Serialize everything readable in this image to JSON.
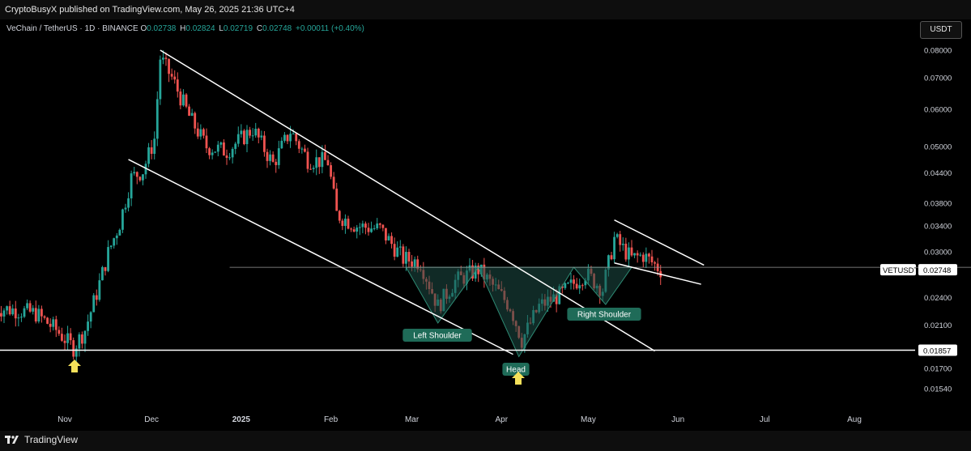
{
  "header": {
    "published": "CryptoBusyX published on TradingView.com, May 26, 2025 21:36 UTC+4"
  },
  "legend": {
    "symbol": "VeChain / TetherUS · 1D · BINANCE",
    "o_label": "O",
    "o_value": "0.02738",
    "h_label": "H",
    "h_value": "0.02824",
    "l_label": "L",
    "l_value": "0.02719",
    "c_label": "C",
    "c_value": "0.02748",
    "change": "+0.00011 (+0.40%)"
  },
  "currency_button": "USDT",
  "footer": {
    "brand": "TradingView"
  },
  "colors": {
    "up": "#26a69a",
    "down": "#ef5350",
    "line": "#ffffff",
    "pattern_fill": "#1e4d45",
    "marker": "#f5e15a"
  },
  "chart_data": {
    "type": "candlestick",
    "symbol": "VETUSDT",
    "y_scale": "log",
    "y_ticks": [
      "0.08000",
      "0.07000",
      "0.06000",
      "0.05000",
      "0.04400",
      "0.03800",
      "0.03400",
      "0.03000",
      "0.02400",
      "0.02100",
      "0.01700",
      "0.01540"
    ],
    "y_tick_values": [
      0.08,
      0.07,
      0.06,
      0.05,
      0.044,
      0.038,
      0.034,
      0.03,
      0.024,
      0.021,
      0.017,
      0.0154
    ],
    "x_ticks": [
      "Nov",
      "Dec",
      "2025",
      "Feb",
      "Mar",
      "Apr",
      "May",
      "Jun",
      "Jul",
      "Aug"
    ],
    "x_tick_dates": [
      "2024-11-01",
      "2024-12-01",
      "2025-01-01",
      "2025-02-01",
      "2025-03-01",
      "2025-04-01",
      "2025-05-01",
      "2025-06-01",
      "2025-07-01",
      "2025-08-01"
    ],
    "last_price_label": "VETUSDT",
    "last_price": "0.02748",
    "support_price_label": "0.01857",
    "support_price": 0.01857,
    "neckline_price": 0.0278,
    "close_series": [
      [
        "2024-10-08",
        0.0228
      ],
      [
        "2024-10-15",
        0.0226
      ],
      [
        "2024-10-22",
        0.0222
      ],
      [
        "2024-10-29",
        0.0205
      ],
      [
        "2024-11-04",
        0.0188
      ],
      [
        "2024-11-08",
        0.0205
      ],
      [
        "2024-11-12",
        0.0245
      ],
      [
        "2024-11-16",
        0.0298
      ],
      [
        "2024-11-20",
        0.0345
      ],
      [
        "2024-11-24",
        0.043
      ],
      [
        "2024-11-28",
        0.0445
      ],
      [
        "2024-12-02",
        0.052
      ],
      [
        "2024-12-04",
        0.077
      ],
      [
        "2024-12-08",
        0.07
      ],
      [
        "2024-12-14",
        0.058
      ],
      [
        "2024-12-20",
        0.05
      ],
      [
        "2024-12-27",
        0.049
      ],
      [
        "2025-01-05",
        0.0545
      ],
      [
        "2025-01-12",
        0.046
      ],
      [
        "2025-01-18",
        0.054
      ],
      [
        "2025-01-24",
        0.047
      ],
      [
        "2025-01-31",
        0.0465
      ],
      [
        "2025-02-03",
        0.036
      ],
      [
        "2025-02-10",
        0.034
      ],
      [
        "2025-02-18",
        0.0335
      ],
      [
        "2025-02-26",
        0.029
      ],
      [
        "2025-03-04",
        0.0285
      ],
      [
        "2025-03-10",
        0.023
      ],
      [
        "2025-03-16",
        0.026
      ],
      [
        "2025-03-24",
        0.0275
      ],
      [
        "2025-03-30",
        0.025
      ],
      [
        "2025-04-04",
        0.023
      ],
      [
        "2025-04-08",
        0.0195
      ],
      [
        "2025-04-14",
        0.023
      ],
      [
        "2025-04-22",
        0.0245
      ],
      [
        "2025-04-30",
        0.027
      ],
      [
        "2025-05-06",
        0.025
      ],
      [
        "2025-05-10",
        0.032
      ],
      [
        "2025-05-16",
        0.029
      ],
      [
        "2025-05-20",
        0.0295
      ],
      [
        "2025-05-26",
        0.02748
      ]
    ],
    "annotations": {
      "left_shoulder": "Left Shoulder",
      "head": "Head",
      "right_shoulder": "Right Shoulder"
    },
    "trendlines": [
      {
        "name": "channel-upper",
        "from": [
          "2024-12-04",
          0.08
        ],
        "to": [
          "2025-05-24",
          0.0185
        ]
      },
      {
        "name": "channel-lower",
        "from": [
          "2024-11-23",
          0.047
        ],
        "to": [
          "2025-04-05",
          0.0182
        ]
      },
      {
        "name": "wedge-upper",
        "from": [
          "2025-05-10",
          0.035
        ],
        "to": [
          "2025-06-10",
          0.0281
        ]
      },
      {
        "name": "wedge-lower",
        "from": [
          "2025-05-10",
          0.0284
        ],
        "to": [
          "2025-06-09",
          0.0256
        ]
      }
    ]
  }
}
